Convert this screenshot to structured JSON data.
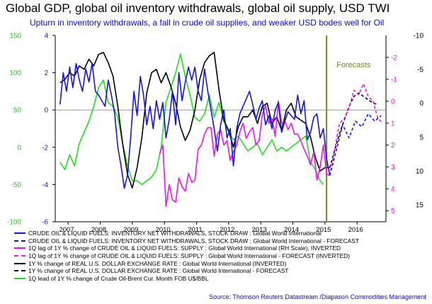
{
  "title": "Global GDP, global oil inventory withdrawals, global oil supply, USD TWI",
  "subtitle": "Upturn in inventory withdrawals, a fall in crude oil supplies, and weaker USD  bodes well for Oil",
  "source": "Source: Thomson Reuters Datastream /Diapason Commodities Management",
  "annotation": "Forecasts",
  "colors": {
    "blue": "#1515e0",
    "black": "#000000",
    "magenta": "#ee10ee",
    "green": "#22dd22",
    "axis_green": "#22cc22",
    "forecast_line": "#6b8e23"
  },
  "chart_data": {
    "type": "line",
    "title": "Global GDP, global oil inventory withdrawals, global oil supply, USD TWI",
    "x": {
      "range": [
        2006.6,
        2016.9
      ],
      "ticks": [
        "2007",
        "2008",
        "2009",
        "2010",
        "2011",
        "2012",
        "2013",
        "2014",
        "2015",
        "2016"
      ],
      "tick_positions": [
        2007.0,
        2008.0,
        2009.0,
        2010.0,
        2011.0,
        2012.0,
        2013.0,
        2014.0,
        2015.0,
        2016.0
      ]
    },
    "y_left_outer": {
      "range": [
        -100,
        150
      ],
      "ticks": [
        "150",
        "100",
        "50",
        "0",
        "-50",
        "-100"
      ],
      "tick_values": [
        150,
        100,
        50,
        0,
        -50,
        -100
      ],
      "color": "#22cc22"
    },
    "y_left_inner": {
      "range": [
        -6,
        4
      ],
      "ticks": [
        "4",
        "2",
        "0",
        "-2",
        "-4",
        "-6"
      ],
      "tick_values": [
        4,
        2,
        0,
        -2,
        -4,
        -6
      ],
      "color": "#1515e0"
    },
    "y_right_inner": {
      "range": [
        -3,
        5.5
      ],
      "inverted": true,
      "ticks": [
        "-2",
        "-1",
        "0",
        "1",
        "2",
        "3",
        "4",
        "5"
      ],
      "tick_values": [
        -2,
        -1,
        0,
        1,
        2,
        3,
        4,
        5
      ],
      "color": "#ee10ee"
    },
    "y_right_outer": {
      "range": [
        -10,
        17.5
      ],
      "inverted": true,
      "ticks": [
        "-10",
        "-5",
        "0",
        "5",
        "10",
        "15"
      ],
      "tick_values": [
        -10,
        -5,
        0,
        5,
        10,
        15
      ],
      "color": "#000000"
    },
    "forecast_line_x": 2015.05,
    "grid": false,
    "series": [
      {
        "name": "CRUDE OIL & LIQUID FUELS: INVENTORY NET WITHDRAWALS, STOCK DRAW : Global World International",
        "axis": "y_left_inner",
        "color": "#1515e0",
        "dash": "none",
        "x": [
          2006.75,
          2006.85,
          2006.95,
          2007.05,
          2007.15,
          2007.25,
          2007.35,
          2007.45,
          2007.55,
          2007.65,
          2007.75,
          2007.85,
          2007.95,
          2008.05,
          2008.15,
          2008.25,
          2008.35,
          2008.45,
          2008.55,
          2008.65,
          2008.75,
          2008.85,
          2008.95,
          2009.05,
          2009.15,
          2009.25,
          2009.35,
          2009.45,
          2009.55,
          2009.65,
          2009.75,
          2009.85,
          2009.95,
          2010.05,
          2010.15,
          2010.25,
          2010.35,
          2010.45,
          2010.55,
          2010.65,
          2010.75,
          2010.85,
          2010.95,
          2011.05,
          2011.15,
          2011.25,
          2011.35,
          2011.45,
          2011.55,
          2011.65,
          2011.75,
          2011.85,
          2011.95,
          2012.05,
          2012.15,
          2012.25,
          2012.35,
          2012.45,
          2012.55,
          2012.65,
          2012.75,
          2012.85,
          2012.95,
          2013.05,
          2013.15,
          2013.25,
          2013.35,
          2013.45,
          2013.55,
          2013.65,
          2013.75,
          2013.85,
          2013.95,
          2014.05,
          2014.15,
          2014.25,
          2014.35,
          2014.45,
          2014.55,
          2014.65,
          2014.75,
          2014.85,
          2014.95,
          2015.05,
          2015.15
        ],
        "y": [
          0.3,
          2.0,
          1.0,
          2.3,
          1.2,
          2.5,
          1.6,
          1.0,
          2.2,
          1.5,
          2.5,
          1.0,
          0.8,
          0.5,
          0.2,
          1.6,
          0.8,
          -0.2,
          -2.0,
          -3.0,
          -4.2,
          -3.5,
          -1.5,
          1.0,
          -0.3,
          1.8,
          0.8,
          -0.8,
          0.2,
          -1.0,
          0.5,
          -0.5,
          0.4,
          -1.5,
          -0.5,
          1.0,
          -0.8,
          2.0,
          0.5,
          1.5,
          2.3,
          1.6,
          2.3,
          1.0,
          0.5,
          2.2,
          1.0,
          0.0,
          -1.0,
          -2.2,
          -0.8,
          0.0,
          -1.5,
          -1.0,
          -3.0,
          -1.0,
          -0.2,
          0.2,
          0.6,
          1.0,
          0.3,
          -0.5,
          0.1,
          0.5,
          -0.8,
          -0.3,
          -1.0,
          0.0,
          0.4,
          -1.2,
          -0.6,
          -0.1,
          -0.3,
          -0.5,
          0.8,
          -0.2,
          0.5,
          -1.6,
          -1.2,
          -0.4,
          -0.2,
          -1.5,
          -1.0,
          -2.6,
          -3.5
        ]
      },
      {
        "name": "CRUDE OIL & LIQUID FUELS: INVENTORY NET WITHDRAWALS, STOCK DRAW : Global World International - FORECAST",
        "axis": "y_left_inner",
        "color": "#1515e0",
        "dash": "4,3",
        "x": [
          2015.15,
          2015.35,
          2015.55,
          2015.75,
          2015.95,
          2016.15,
          2016.35,
          2016.55,
          2016.75
        ],
        "y": [
          -3.5,
          -2.2,
          -0.8,
          -1.5,
          -0.6,
          -0.9,
          -0.2,
          -0.6,
          -0.3
        ]
      },
      {
        "name": "1Q lag of 1Y % change of CRUDE OIL & LIQUID FUELS: SUPPLY : Global World International (RH Scale), INVERTED",
        "axis": "y_right_inner",
        "color": "#ee10ee",
        "dash": "none",
        "x": [
          2009.85,
          2009.95,
          2010.05,
          2010.15,
          2010.25,
          2010.35,
          2010.45,
          2010.55,
          2010.65,
          2010.75,
          2010.85,
          2010.95,
          2011.05,
          2011.15,
          2011.25,
          2011.35,
          2011.45,
          2011.55,
          2011.65,
          2011.75,
          2011.85,
          2011.95,
          2012.05,
          2012.15,
          2012.25,
          2012.35,
          2012.45,
          2012.55,
          2012.65,
          2012.75,
          2012.85,
          2012.95,
          2013.05,
          2013.15,
          2013.25,
          2013.35,
          2013.45,
          2013.55,
          2013.65,
          2013.75,
          2013.85,
          2013.95,
          2014.05,
          2014.15,
          2014.25,
          2014.35,
          2014.45,
          2014.55,
          2014.65,
          2014.75,
          2014.85,
          2014.95,
          2015.05,
          2015.15
        ],
        "y": [
          2.4,
          2.0,
          4.8,
          3.8,
          4.5,
          4.6,
          3.5,
          3.9,
          4.1,
          3.3,
          3.7,
          3.6,
          2.2,
          2.0,
          1.5,
          1.2,
          1.2,
          2.5,
          1.5,
          1.3,
          2.0,
          1.8,
          2.7,
          2.3,
          2.0,
          1.4,
          1.0,
          1.7,
          1.4,
          1.2,
          2.0,
          1.8,
          0.6,
          0.2,
          1.0,
          0.8,
          1.6,
          0.0,
          1.0,
          0.9,
          1.3,
          1.0,
          1.5,
          1.5,
          1.8,
          2.2,
          2.5,
          2.9,
          2.3,
          3.6,
          3.0,
          2.0,
          3.3,
          3.4
        ]
      },
      {
        "name": "1Q lag of 1Y % change of CRUDE OIL & LIQUID FUELS: SUPPLY : Global World International - FORECAST (INVERTED)",
        "axis": "y_right_inner",
        "color": "#ee10ee",
        "dash": "4,3",
        "x": [
          2015.15,
          2015.3,
          2015.45,
          2015.6,
          2015.75,
          2015.9,
          2016.05,
          2016.2,
          2016.35,
          2016.5,
          2016.65,
          2016.8
        ],
        "y": [
          3.4,
          2.2,
          1.0,
          0.8,
          0.3,
          -0.5,
          -0.3,
          -0.8,
          -0.2,
          0.0,
          0.8,
          1.0
        ]
      },
      {
        "name": "1Y % change of REAL U.S. DOLLAR EXCHANGE RATE : Global World International (INVERTED)",
        "axis": "y_right_outer",
        "color": "#000000",
        "dash": "none",
        "x": [
          2006.75,
          2006.9,
          2007.05,
          2007.2,
          2007.35,
          2007.5,
          2007.65,
          2007.8,
          2007.95,
          2008.1,
          2008.25,
          2008.4,
          2008.55,
          2008.7,
          2008.85,
          2009.0,
          2009.15,
          2009.3,
          2009.45,
          2009.6,
          2009.75,
          2009.9,
          2010.05,
          2010.2,
          2010.35,
          2010.5,
          2010.65,
          2010.8,
          2010.95,
          2011.1,
          2011.25,
          2011.4,
          2011.55,
          2011.7,
          2011.85,
          2012.0,
          2012.15,
          2012.3,
          2012.45,
          2012.6,
          2012.75,
          2012.9,
          2013.05,
          2013.2,
          2013.35,
          2013.5,
          2013.65,
          2013.8,
          2013.95,
          2014.1,
          2014.25,
          2014.4,
          2014.55,
          2014.7,
          2014.85,
          2015.0,
          2015.15
        ],
        "y": [
          -3.0,
          -3.5,
          -4.5,
          -4.0,
          -5.5,
          -5.0,
          -6.5,
          -5.5,
          -7.2,
          -7.5,
          -6.0,
          -4.0,
          0.5,
          6.0,
          10.5,
          12.5,
          9.5,
          5.0,
          -1.5,
          -4.5,
          -5.0,
          -3.0,
          -4.5,
          -2.5,
          0.0,
          3.5,
          5.5,
          4.0,
          1.0,
          -3.5,
          -6.0,
          -7.0,
          -7.5,
          -2.0,
          2.5,
          4.0,
          6.5,
          3.5,
          2.0,
          2.0,
          1.0,
          3.0,
          0.5,
          0.0,
          3.0,
          2.0,
          4.0,
          1.0,
          0.0,
          2.0,
          2.5,
          3.0,
          5.0,
          8.0,
          10.0,
          9.5,
          9.5
        ]
      },
      {
        "name": "1Y % change of REAL U.S. DOLLAR EXCHANGE RATE : Global World International - FORECAST",
        "axis": "y_right_outer",
        "color": "#000000",
        "dash": "4,3",
        "x": [
          2015.15,
          2015.3,
          2015.45,
          2015.6,
          2015.75,
          2015.9,
          2016.05,
          2016.2,
          2016.35,
          2016.5,
          2016.65
        ],
        "y": [
          9.5,
          7.0,
          4.5,
          2.5,
          0.5,
          -1.0,
          -1.5,
          -1.0,
          -0.5,
          0.0,
          0.2
        ]
      },
      {
        "name": "1Q lead of 1Y % change of Crude Oil-Brent Cur. Month FOB U$/BBL",
        "axis": "y_left_outer",
        "color": "#22dd22",
        "dash": "none",
        "x": [
          2006.75,
          2006.9,
          2007.05,
          2007.2,
          2007.35,
          2007.5,
          2007.65,
          2007.8,
          2007.95,
          2008.1,
          2008.25,
          2008.4,
          2008.55,
          2008.7,
          2008.85,
          2009.0,
          2009.15,
          2009.3,
          2009.45,
          2009.6,
          2009.75,
          2009.9,
          2010.05,
          2010.2,
          2010.35,
          2010.5,
          2010.65,
          2010.8,
          2010.95,
          2011.1,
          2011.25,
          2011.4,
          2011.55,
          2011.7,
          2011.85,
          2012.0,
          2012.15,
          2012.3,
          2012.45,
          2012.6,
          2012.75,
          2012.9,
          2013.05,
          2013.2,
          2013.35,
          2013.5,
          2013.65,
          2013.8,
          2013.95,
          2014.1,
          2014.25,
          2014.4,
          2014.55,
          2014.7,
          2014.85,
          2014.95
        ],
        "y": [
          -20,
          -30,
          -10,
          -25,
          5,
          20,
          35,
          55,
          80,
          90,
          60,
          55,
          40,
          5,
          -25,
          -45,
          -45,
          -50,
          -45,
          -40,
          -30,
          0,
          60,
          80,
          100,
          125,
          95,
          70,
          40,
          35,
          45,
          70,
          40,
          60,
          35,
          20,
          10,
          15,
          5,
          -5,
          0,
          5,
          -10,
          0,
          10,
          -5,
          0,
          -5,
          0,
          5,
          10,
          15,
          -20,
          -30,
          -45,
          -50
        ]
      }
    ]
  },
  "legend": [
    {
      "label": "CRUDE OIL & LIQUID FUELS: INVENTORY NET WITHDRAWALS, STOCK DRAW : Global World International",
      "color": "#1515e0",
      "style": "solid"
    },
    {
      "label": "CRUDE OIL & LIQUID FUELS: INVENTORY NET WITHDRAWALS, STOCK DRAW : Global World International - FORECAST",
      "color": "#1515e0",
      "style": "dashed"
    },
    {
      "label": "1Q lag of 1Y % change of CRUDE OIL & LIQUID FUELS: SUPPLY : Global World International (RH Scale), INVERTED",
      "color": "#ee10ee",
      "style": "solid"
    },
    {
      "label": "1Q lag of 1Y % change of CRUDE OIL & LIQUID FUELS: SUPPLY : Global World International - FORECAST (INVERTED)",
      "color": "#ee10ee",
      "style": "dashed"
    },
    {
      "label": "1Y % change of REAL U.S. DOLLAR EXCHANGE RATE : Global World International (INVERTED)",
      "color": "#000000",
      "style": "solid"
    },
    {
      "label": "1Y % change of REAL U.S. DOLLAR EXCHANGE RATE : Global World International - FORECAST",
      "color": "#000000",
      "style": "dashed"
    },
    {
      "label": "1Q lead of 1Y % change of Crude Oil-Brent Cur. Month FOB U$/BBL",
      "color": "#22dd22",
      "style": "solid"
    }
  ]
}
